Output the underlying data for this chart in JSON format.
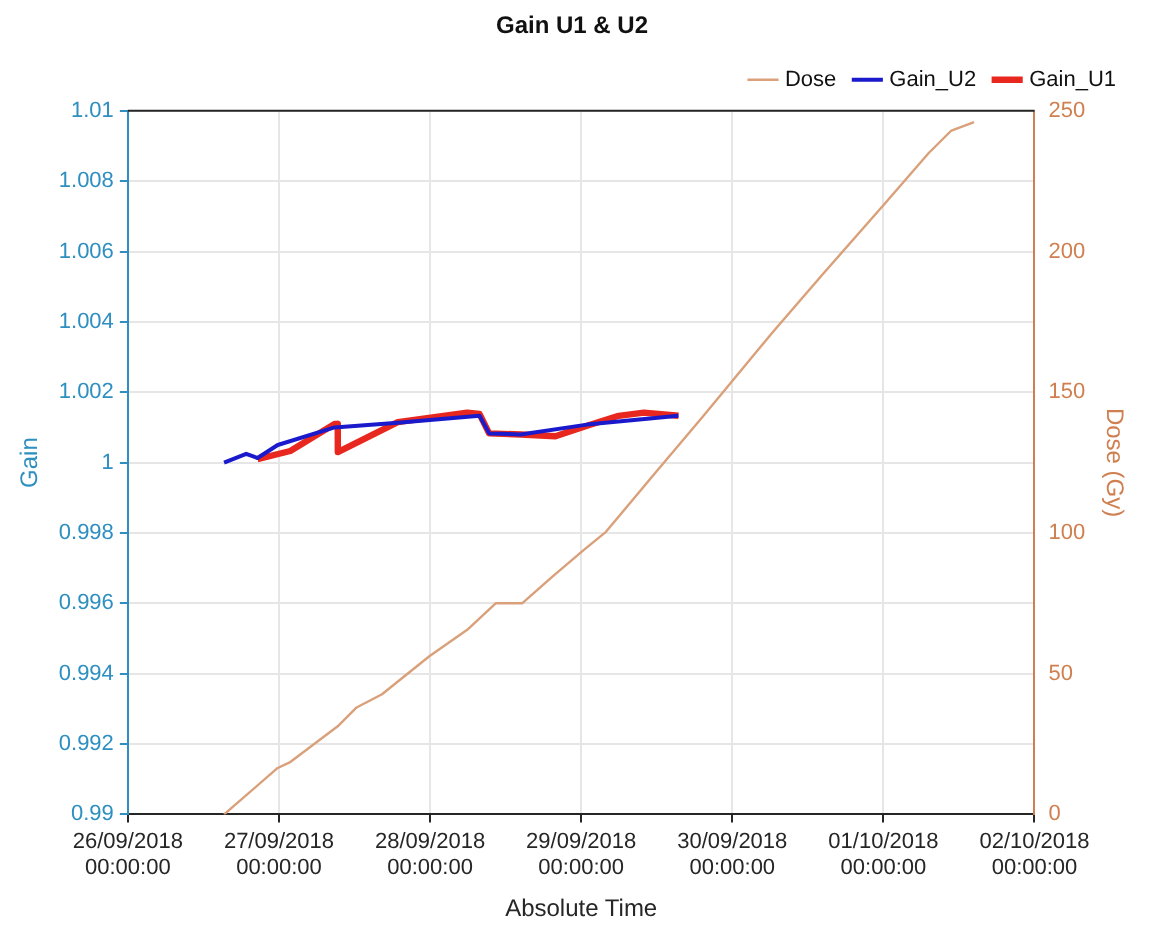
{
  "chart_data": {
    "type": "line",
    "title": "Gain U1 & U2",
    "xlabel": "Absolute Time",
    "ylabel": "Gain",
    "y2label": "Dose (Gy)",
    "xlim": [
      "2018-09-26T00:00",
      "2018-10-02T00:00"
    ],
    "xticks": [
      {
        "value": "2018-09-26T00:00",
        "label": "26/09/2018 00:00:00"
      },
      {
        "value": "2018-09-27T00:00",
        "label": "27/09/2018 00:00:00"
      },
      {
        "value": "2018-09-28T00:00",
        "label": "28/09/2018 00:00:00"
      },
      {
        "value": "2018-09-29T00:00",
        "label": "29/09/2018 00:00:00"
      },
      {
        "value": "2018-09-30T00:00",
        "label": "30/09/2018 00:00:00"
      },
      {
        "value": "2018-10-01T00:00",
        "label": "01/10/2018 00:00:00"
      },
      {
        "value": "2018-10-02T00:00",
        "label": "02/10/2018 00:00:00"
      }
    ],
    "ylim": [
      0.99,
      1.01
    ],
    "yticks": [
      0.99,
      0.992,
      0.994,
      0.996,
      0.998,
      1,
      1.002,
      1.004,
      1.006,
      1.008,
      1.01
    ],
    "y2lim": [
      0,
      250
    ],
    "y2ticks": [
      0,
      50,
      100,
      150,
      200,
      250
    ],
    "grid": true,
    "legend": "top right",
    "marker": "none",
    "line_style": "solid",
    "series": [
      {
        "name": "Gain_U1",
        "color": "#e8281e",
        "x": [
          "2018-09-26T20:36",
          "2018-09-27T01:48",
          "2018-09-27T08:50",
          "2018-09-27T09:20",
          "2018-09-27T09:21",
          "2018-09-27T18:52",
          "2018-09-28T05:54",
          "2018-09-28T07:52",
          "2018-09-28T09:23",
          "2018-09-28T14:24",
          "2018-09-28T19:55",
          "2018-09-29T00:56",
          "2018-09-29T05:57",
          "2018-09-29T09:58",
          "2018-09-29T15:27"
        ],
        "values": [
          1.0001,
          1.00033,
          1.0011,
          1.0011,
          1.0003,
          1.00115,
          1.00142,
          1.00138,
          1.00083,
          1.0008,
          1.00075,
          1.00105,
          1.00133,
          1.00142,
          1.00133
        ]
      },
      {
        "name": "Gain_U2",
        "color": "#1a1acc",
        "x": [
          "2018-09-26T15:17",
          "2018-09-26T18:48",
          "2018-09-26T20:36",
          "2018-09-26T23:48",
          "2018-09-27T08:50",
          "2018-09-27T18:52",
          "2018-09-28T07:52",
          "2018-09-28T09:23",
          "2018-09-28T14:24",
          "2018-09-29T00:56",
          "2018-09-29T15:27"
        ],
        "values": [
          1.0,
          1.00025,
          1.00013,
          1.0005,
          1.001,
          1.00113,
          1.00133,
          1.00083,
          1.0008,
          1.00108,
          1.00133
        ]
      },
      {
        "name": "Dose",
        "color": "#d9a07a",
        "axis": "y2",
        "x": [
          "2018-09-26T15:17",
          "2018-09-26T23:48",
          "2018-09-27T01:48",
          "2018-09-27T09:20",
          "2018-09-27T12:20",
          "2018-09-27T16:22",
          "2018-09-27T23:53",
          "2018-09-28T05:54",
          "2018-09-28T10:25",
          "2018-09-28T14:37",
          "2018-09-28T19:26",
          "2018-09-29T00:26",
          "2018-09-29T03:56",
          "2018-09-29T11:27",
          "2018-09-29T19:12",
          "2018-09-30T00:00",
          "2018-09-30T06:29",
          "2018-09-30T14:24",
          "2018-10-01T00:29",
          "2018-10-01T07:12",
          "2018-10-01T10:48",
          "2018-10-01T14:24"
        ],
        "values": [
          0,
          16.5,
          18.6,
          31.3,
          38,
          42.7,
          56.2,
          65.6,
          75,
          75,
          84.5,
          94,
          100.4,
          120.5,
          141,
          154,
          171.5,
          192,
          217.7,
          235,
          243,
          246
        ]
      }
    ]
  }
}
